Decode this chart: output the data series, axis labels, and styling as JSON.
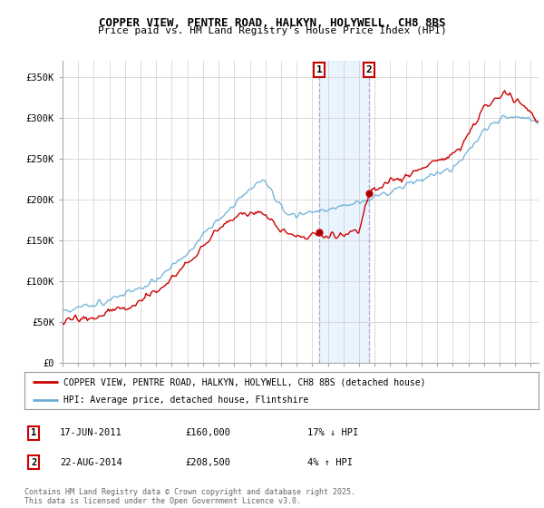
{
  "title": "COPPER VIEW, PENTRE ROAD, HALKYN, HOLYWELL, CH8 8BS",
  "subtitle": "Price paid vs. HM Land Registry's House Price Index (HPI)",
  "ylabel_ticks": [
    "£0",
    "£50K",
    "£100K",
    "£150K",
    "£200K",
    "£250K",
    "£300K",
    "£350K"
  ],
  "ytick_vals": [
    0,
    50000,
    100000,
    150000,
    200000,
    250000,
    300000,
    350000
  ],
  "ylim": [
    0,
    370000
  ],
  "xlim_start": 1995.0,
  "xlim_end": 2025.5,
  "hpi_color": "#6baed6",
  "price_color": "#cc0000",
  "sale1_x": 2011.46,
  "sale1_y": 160000,
  "sale2_x": 2014.64,
  "sale2_y": 208500,
  "legend_label1": "COPPER VIEW, PENTRE ROAD, HALKYN, HOLYWELL, CH8 8BS (detached house)",
  "legend_label2": "HPI: Average price, detached house, Flintshire",
  "annotation1_date": "17-JUN-2011",
  "annotation1_price": "£160,000",
  "annotation1_hpi": "17% ↓ HPI",
  "annotation2_date": "22-AUG-2014",
  "annotation2_price": "£208,500",
  "annotation2_hpi": "4% ↑ HPI",
  "footer": "Contains HM Land Registry data © Crown copyright and database right 2025.\nThis data is licensed under the Open Government Licence v3.0.",
  "background_color": "#ffffff",
  "grid_color": "#cccccc"
}
